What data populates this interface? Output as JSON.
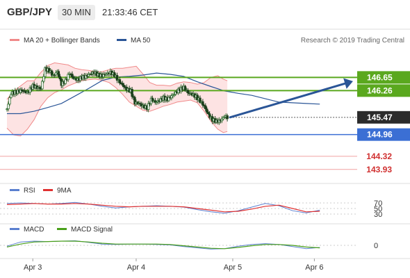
{
  "header": {
    "symbol": "GBP/JPY",
    "timeframe": "30 MIN",
    "time": "21:33:46 CET"
  },
  "credit": "Research © 2019 Trading Central",
  "colors": {
    "bollinger": "#f08a8a",
    "bollinger_fill": "#fde3e3",
    "ma50": "#2a5597",
    "candle_up": "#2e6b2e",
    "candle_down": "#1d3f1d",
    "resistance": "#5aa81e",
    "support": "#3b6fd4",
    "target_line": "#f0a0a0",
    "rsi": "#5a7fcf",
    "rsi_ma": "#e03030",
    "macd": "#5a7fcf",
    "macd_signal": "#4aa01a",
    "arrow": "#2a5597"
  },
  "chart_data": [
    {
      "type": "candlestick",
      "title": "GBP/JPY",
      "legend": [
        "MA 20 + Bollinger Bands",
        "MA 50"
      ],
      "y_axis_range": [
        143.7,
        147.5
      ],
      "price_levels": [
        {
          "value": 146.65,
          "kind": "resistance",
          "label": "146.65"
        },
        {
          "value": 146.26,
          "kind": "resistance",
          "label": "146.26"
        },
        {
          "value": 145.47,
          "kind": "current",
          "label": "145.47"
        },
        {
          "value": 144.96,
          "kind": "support",
          "label": "144.96"
        },
        {
          "value": 144.32,
          "kind": "target",
          "label": "144.32"
        },
        {
          "value": 143.93,
          "kind": "target",
          "label": "143.93"
        }
      ],
      "x_labels": [
        "Apr 3",
        "Apr 4",
        "Apr 5",
        "Apr 6"
      ],
      "close_path": [
        [
          0,
          145.72
        ],
        [
          6,
          146.18
        ],
        [
          14,
          146.22
        ],
        [
          22,
          146.27
        ],
        [
          30,
          146.2
        ],
        [
          38,
          146.4
        ],
        [
          44,
          146.35
        ],
        [
          50,
          146.32
        ],
        [
          56,
          146.9
        ],
        [
          62,
          146.85
        ],
        [
          68,
          146.7
        ],
        [
          74,
          146.82
        ],
        [
          80,
          146.45
        ],
        [
          86,
          146.55
        ],
        [
          92,
          146.78
        ],
        [
          98,
          146.62
        ],
        [
          104,
          146.58
        ],
        [
          110,
          146.65
        ],
        [
          116,
          146.68
        ],
        [
          122,
          146.75
        ],
        [
          128,
          146.8
        ],
        [
          134,
          146.72
        ],
        [
          140,
          146.7
        ],
        [
          146,
          146.75
        ],
        [
          152,
          146.8
        ],
        [
          158,
          146.72
        ],
        [
          164,
          146.55
        ],
        [
          170,
          146.42
        ],
        [
          176,
          146.3
        ],
        [
          182,
          146.25
        ],
        [
          188,
          145.9
        ],
        [
          194,
          145.88
        ],
        [
          200,
          145.8
        ],
        [
          206,
          145.75
        ],
        [
          212,
          146.0
        ],
        [
          218,
          145.92
        ],
        [
          224,
          145.96
        ],
        [
          230,
          146.05
        ],
        [
          236,
          146.0
        ],
        [
          242,
          146.1
        ],
        [
          248,
          146.2
        ],
        [
          254,
          146.3
        ],
        [
          260,
          146.35
        ],
        [
          266,
          146.2
        ],
        [
          272,
          146.15
        ],
        [
          278,
          146.08
        ],
        [
          284,
          145.95
        ],
        [
          290,
          145.8
        ],
        [
          296,
          145.55
        ],
        [
          302,
          145.4
        ],
        [
          308,
          145.35
        ],
        [
          314,
          145.38
        ],
        [
          320,
          145.5
        ],
        [
          324,
          145.47
        ]
      ],
      "bollinger_upper": [
        [
          0,
          146.0
        ],
        [
          10,
          146.25
        ],
        [
          20,
          146.4
        ],
        [
          30,
          146.55
        ],
        [
          40,
          146.55
        ],
        [
          50,
          146.8
        ],
        [
          60,
          147.0
        ],
        [
          70,
          147.08
        ],
        [
          80,
          147.05
        ],
        [
          90,
          147.02
        ],
        [
          100,
          146.92
        ],
        [
          110,
          146.88
        ],
        [
          120,
          146.86
        ],
        [
          130,
          146.82
        ],
        [
          140,
          146.82
        ],
        [
          150,
          146.88
        ],
        [
          160,
          146.92
        ],
        [
          170,
          146.92
        ],
        [
          180,
          146.95
        ],
        [
          190,
          146.98
        ],
        [
          200,
          146.75
        ],
        [
          210,
          146.5
        ],
        [
          220,
          146.42
        ],
        [
          230,
          146.42
        ],
        [
          240,
          146.4
        ],
        [
          250,
          146.48
        ],
        [
          260,
          146.52
        ],
        [
          270,
          146.5
        ],
        [
          280,
          146.45
        ],
        [
          290,
          146.5
        ],
        [
          300,
          146.65
        ],
        [
          310,
          146.7
        ],
        [
          318,
          146.6
        ],
        [
          324,
          146.55
        ]
      ],
      "bollinger_lower": [
        [
          0,
          145.15
        ],
        [
          10,
          144.95
        ],
        [
          20,
          144.92
        ],
        [
          30,
          145.12
        ],
        [
          40,
          145.4
        ],
        [
          50,
          145.8
        ],
        [
          60,
          146.05
        ],
        [
          70,
          146.2
        ],
        [
          80,
          146.28
        ],
        [
          90,
          146.4
        ],
        [
          100,
          146.48
        ],
        [
          110,
          146.55
        ],
        [
          120,
          146.58
        ],
        [
          130,
          146.6
        ],
        [
          140,
          146.56
        ],
        [
          150,
          146.5
        ],
        [
          160,
          146.35
        ],
        [
          170,
          146.15
        ],
        [
          180,
          145.92
        ],
        [
          190,
          145.8
        ],
        [
          200,
          145.68
        ],
        [
          210,
          145.65
        ],
        [
          220,
          145.72
        ],
        [
          230,
          145.8
        ],
        [
          240,
          145.85
        ],
        [
          250,
          145.92
        ],
        [
          260,
          145.95
        ],
        [
          270,
          145.98
        ],
        [
          280,
          145.9
        ],
        [
          290,
          145.65
        ],
        [
          300,
          145.35
        ],
        [
          310,
          145.12
        ],
        [
          318,
          145.02
        ],
        [
          324,
          145.05
        ]
      ],
      "ma50": [
        [
          0,
          145.58
        ],
        [
          20,
          145.58
        ],
        [
          40,
          145.65
        ],
        [
          60,
          145.76
        ],
        [
          80,
          145.88
        ],
        [
          100,
          146.1
        ],
        [
          120,
          146.32
        ],
        [
          140,
          146.56
        ],
        [
          160,
          146.66
        ],
        [
          180,
          146.68
        ],
        [
          200,
          146.72
        ],
        [
          220,
          146.78
        ],
        [
          240,
          146.74
        ],
        [
          260,
          146.68
        ],
        [
          280,
          146.52
        ],
        [
          300,
          146.38
        ],
        [
          320,
          146.25
        ],
        [
          340,
          146.18
        ],
        [
          360,
          146.12
        ],
        [
          380,
          146.02
        ],
        [
          400,
          145.92
        ],
        [
          420,
          145.9
        ],
        [
          440,
          145.88
        ],
        [
          460,
          145.86
        ]
      ]
    },
    {
      "type": "line",
      "title": "RSI",
      "legend": [
        "RSI",
        "9MA"
      ],
      "y_ticks": [
        70,
        50,
        30
      ],
      "y_axis_range": [
        10,
        90
      ],
      "rsi": [
        [
          0,
          68
        ],
        [
          20,
          70
        ],
        [
          40,
          68
        ],
        [
          60,
          66
        ],
        [
          80,
          68
        ],
        [
          100,
          72
        ],
        [
          120,
          66
        ],
        [
          140,
          58
        ],
        [
          160,
          52
        ],
        [
          180,
          56
        ],
        [
          200,
          58
        ],
        [
          220,
          60
        ],
        [
          240,
          58
        ],
        [
          260,
          55
        ],
        [
          280,
          46
        ],
        [
          300,
          38
        ],
        [
          320,
          33
        ],
        [
          340,
          42
        ],
        [
          360,
          55
        ],
        [
          380,
          68
        ],
        [
          400,
          60
        ],
        [
          420,
          42
        ],
        [
          440,
          34
        ],
        [
          460,
          44
        ]
      ],
      "rsi_ma": [
        [
          0,
          64
        ],
        [
          20,
          66
        ],
        [
          40,
          68
        ],
        [
          60,
          66
        ],
        [
          80,
          66
        ],
        [
          100,
          68
        ],
        [
          120,
          66
        ],
        [
          140,
          62
        ],
        [
          160,
          58
        ],
        [
          180,
          56
        ],
        [
          200,
          58
        ],
        [
          220,
          58
        ],
        [
          240,
          58
        ],
        [
          260,
          56
        ],
        [
          280,
          50
        ],
        [
          300,
          44
        ],
        [
          320,
          38
        ],
        [
          340,
          40
        ],
        [
          360,
          48
        ],
        [
          380,
          58
        ],
        [
          400,
          62
        ],
        [
          420,
          50
        ],
        [
          440,
          38
        ],
        [
          460,
          40
        ]
      ]
    },
    {
      "type": "line",
      "title": "MACD",
      "legend": [
        "MACD",
        "MACD Signal"
      ],
      "y_ticks": [
        0
      ],
      "y_axis_range": [
        -0.25,
        0.25
      ],
      "macd": [
        [
          0,
          -0.02
        ],
        [
          20,
          0.08
        ],
        [
          40,
          0.1
        ],
        [
          60,
          0.09
        ],
        [
          80,
          0.1
        ],
        [
          100,
          0.11
        ],
        [
          120,
          0.07
        ],
        [
          140,
          0.03
        ],
        [
          160,
          0.02
        ],
        [
          180,
          0.03
        ],
        [
          200,
          0.03
        ],
        [
          220,
          0.02
        ],
        [
          240,
          0.01
        ],
        [
          260,
          -0.03
        ],
        [
          280,
          -0.06
        ],
        [
          300,
          -0.09
        ],
        [
          320,
          -0.08
        ],
        [
          340,
          -0.02
        ],
        [
          360,
          0.02
        ],
        [
          380,
          0.04
        ],
        [
          400,
          0.02
        ],
        [
          420,
          -0.03
        ],
        [
          440,
          -0.08
        ],
        [
          460,
          -0.05
        ]
      ],
      "macd_signal": [
        [
          0,
          -0.04
        ],
        [
          20,
          0.03
        ],
        [
          40,
          0.08
        ],
        [
          60,
          0.09
        ],
        [
          80,
          0.1
        ],
        [
          100,
          0.1
        ],
        [
          120,
          0.08
        ],
        [
          140,
          0.05
        ],
        [
          160,
          0.03
        ],
        [
          180,
          0.03
        ],
        [
          200,
          0.03
        ],
        [
          220,
          0.03
        ],
        [
          240,
          0.02
        ],
        [
          260,
          -0.01
        ],
        [
          280,
          -0.04
        ],
        [
          300,
          -0.07
        ],
        [
          320,
          -0.08
        ],
        [
          340,
          -0.05
        ],
        [
          360,
          -0.01
        ],
        [
          380,
          0.02
        ],
        [
          400,
          0.02
        ],
        [
          420,
          0.0
        ],
        [
          440,
          -0.04
        ],
        [
          460,
          -0.06
        ]
      ]
    }
  ]
}
